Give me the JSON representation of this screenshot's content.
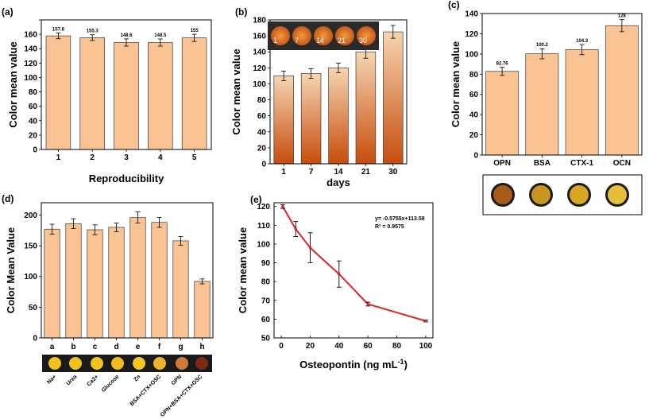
{
  "colors": {
    "bar": "#f9c394",
    "bar_stroke": "#3a3a3a",
    "line": "#e0242a",
    "axis": "#000000",
    "strip_bg": "#1a1a1a"
  },
  "chart_data": [
    {
      "id": "a",
      "panel_label": "(a)",
      "type": "bar",
      "categories": [
        "1",
        "2",
        "3",
        "4",
        "5"
      ],
      "values": [
        157.8,
        155.3,
        148.6,
        148.5,
        155
      ],
      "errors": [
        4,
        4,
        5,
        5,
        5
      ],
      "data_labels": [
        "157.8",
        "155.3",
        "148.6",
        "148.5",
        "155"
      ],
      "ylabel": "Color mean value",
      "xlabel": "Reproducibility",
      "ylim": [
        0,
        180
      ],
      "yticks": [
        0,
        20,
        40,
        60,
        80,
        100,
        120,
        140,
        160,
        180
      ],
      "yticklabels": [
        "0",
        "20",
        "40",
        "60",
        "80",
        "100",
        "120",
        "140",
        "160",
        ""
      ]
    },
    {
      "id": "b",
      "panel_label": "(b)",
      "type": "bar",
      "categories": [
        "1",
        "7",
        "14",
        "21",
        "30"
      ],
      "values": [
        110,
        113,
        120,
        140,
        165
      ],
      "errors": [
        6,
        6,
        6,
        8,
        8
      ],
      "ylabel": "Color mean value",
      "xlabel": "days",
      "ylim": [
        0,
        180
      ],
      "yticks": [
        0,
        20,
        40,
        60,
        80,
        100,
        120,
        140,
        160,
        180
      ],
      "yticklabels": [
        "0",
        "20",
        "40",
        "60",
        "80",
        "100",
        "120",
        "140",
        "160",
        "180"
      ],
      "inset_labels": [
        "1",
        "7",
        "14",
        "21",
        "30"
      ]
    },
    {
      "id": "c",
      "panel_label": "(c)",
      "type": "bar",
      "categories": [
        "OPN",
        "BSA",
        "CTX-1",
        "OCN"
      ],
      "values": [
        82.76,
        100.2,
        104.3,
        128
      ],
      "errors": [
        4,
        5,
        5,
        6
      ],
      "data_labels": [
        "82.76",
        "100.2",
        "104.3",
        "128"
      ],
      "ylabel": "Color mean value",
      "xlabel": "",
      "ylim": [
        0,
        140
      ],
      "yticks": [
        0,
        20,
        40,
        60,
        80,
        100,
        120,
        140
      ],
      "yticklabels": [
        "0",
        "20",
        "40",
        "60",
        "80",
        "100",
        "120",
        "140"
      ]
    },
    {
      "id": "d",
      "panel_label": "(d)",
      "type": "bar",
      "categories": [
        "a",
        "b",
        "c",
        "d",
        "e",
        "f",
        "g",
        "h"
      ],
      "values": [
        177,
        186,
        176,
        180,
        196,
        188,
        158,
        92
      ],
      "errors": [
        8,
        8,
        8,
        7,
        9,
        8,
        7,
        4
      ],
      "ylabel": "Color Mean Value",
      "xlabel": "",
      "ylim": [
        0,
        220
      ],
      "yticks": [
        0,
        50,
        100,
        150,
        200
      ],
      "yticklabels": [
        "0",
        "50",
        "100",
        "150",
        "200"
      ],
      "strip_labels": [
        "Na+",
        "Urea",
        "Ca2+",
        "Glucose",
        "Zn",
        "BSA+CTX+OSC",
        "OPN",
        "OPN+BSA+CTX+OSC"
      ]
    },
    {
      "id": "e",
      "panel_label": "(e)",
      "type": "line",
      "x": [
        1,
        10,
        20,
        40,
        60,
        100
      ],
      "y": [
        120,
        108,
        98,
        84,
        68,
        59
      ],
      "errors": [
        1,
        4,
        8,
        7,
        1,
        0.5
      ],
      "ylabel": "Color mean value",
      "xlabel": "Osteopontin (ng mL",
      "xlabel_sup": "-1",
      "xlabel_end": ")",
      "xlim": [
        -5,
        105
      ],
      "ylim": [
        50,
        122
      ],
      "xticks": [
        0,
        20,
        40,
        60,
        80,
        100
      ],
      "yticks": [
        50,
        60,
        70,
        80,
        90,
        100,
        110,
        120
      ],
      "equation": "y= -0.5755x+113.58",
      "r2": "R² = 0.9575"
    }
  ]
}
